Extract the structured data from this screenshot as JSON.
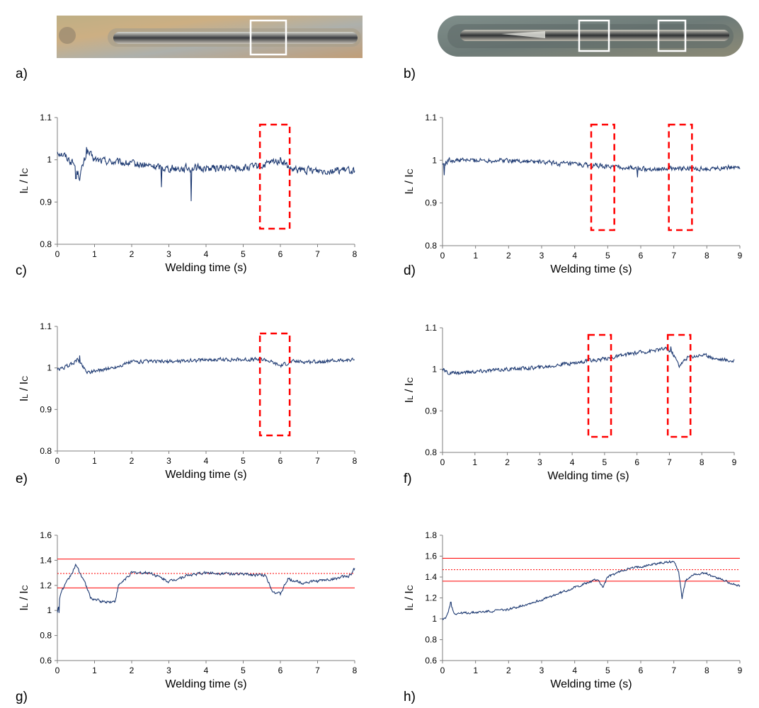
{
  "panel_labels": [
    "a)",
    "b)",
    "c)",
    "d)",
    "e)",
    "f)",
    "g)",
    "h)"
  ],
  "photos": [
    {
      "label": "a)",
      "description_name": "weld-seam-photo-a",
      "marked_regions": 1
    },
    {
      "label": "b)",
      "description_name": "weld-seam-photo-b",
      "marked_regions": 2
    }
  ],
  "colors": {
    "series": "#1f3b73",
    "highlight": "#ff0000",
    "axis": "#7f7f7f"
  },
  "chart_data": [
    {
      "id": "c",
      "label": "c)",
      "type": "line",
      "xlabel": "Welding time (s)",
      "ylabel": "IL / IC",
      "ylabel_main": "I",
      "ylabel_sub1": "L",
      "ylabel_mid": " / I",
      "ylabel_sub2": "C",
      "xlim": [
        0,
        8
      ],
      "ylim": [
        0.8,
        1.1
      ],
      "xticks": [
        "0",
        "1",
        "2",
        "3",
        "4",
        "5",
        "6",
        "7",
        "8"
      ],
      "yticks": [
        "0.8",
        "0.9",
        "1",
        "1.1"
      ],
      "series": [
        {
          "name": "IL/IC",
          "keypoints": [
            [
              0,
              1.02
            ],
            [
              0.2,
              1.01
            ],
            [
              0.45,
              0.99
            ],
            [
              0.6,
              0.96
            ],
            [
              0.8,
              1.02
            ],
            [
              1.0,
              1.0
            ],
            [
              2,
              0.99
            ],
            [
              3,
              0.98
            ],
            [
              4,
              0.98
            ],
            [
              5,
              0.98
            ],
            [
              5.5,
              0.985
            ],
            [
              6,
              1.0
            ],
            [
              6.3,
              0.975
            ],
            [
              7,
              0.975
            ],
            [
              8,
              0.975
            ]
          ],
          "noise": 0.008,
          "spikes": [
            [
              0.5,
              0.955
            ],
            [
              0.78,
              1.03
            ],
            [
              2.8,
              0.935
            ],
            [
              3.6,
              0.902
            ]
          ]
        }
      ],
      "highlight_boxes": [
        [
          5.45,
          6.25
        ]
      ]
    },
    {
      "id": "d",
      "label": "d)",
      "type": "line",
      "xlabel": "Welding time (s)",
      "ylabel": "IL / IC",
      "ylabel_main": "I",
      "ylabel_sub1": "L",
      "ylabel_mid": " / I",
      "ylabel_sub2": "C",
      "xlim": [
        0,
        9
      ],
      "ylim": [
        0.8,
        1.1
      ],
      "xticks": [
        "0",
        "1",
        "2",
        "3",
        "4",
        "5",
        "6",
        "7",
        "8",
        "9"
      ],
      "yticks": [
        "0.8",
        "0.9",
        "1",
        "1.1"
      ],
      "series": [
        {
          "name": "IL/IC",
          "keypoints": [
            [
              0,
              0.99
            ],
            [
              0.2,
              1.0
            ],
            [
              2,
              1.0
            ],
            [
              3,
              0.995
            ],
            [
              4,
              0.99
            ],
            [
              5,
              0.985
            ],
            [
              6,
              0.98
            ],
            [
              7,
              0.98
            ],
            [
              8,
              0.98
            ],
            [
              9,
              0.985
            ]
          ],
          "noise": 0.005,
          "spikes": [
            [
              0.05,
              0.965
            ],
            [
              5.9,
              0.96
            ]
          ]
        }
      ],
      "highlight_boxes": [
        [
          4.5,
          5.2
        ],
        [
          6.85,
          7.55
        ]
      ]
    },
    {
      "id": "e",
      "label": "e)",
      "type": "line",
      "xlabel": "Welding time (s)",
      "ylabel": "IL / IC",
      "ylabel_main": "I",
      "ylabel_sub1": "L",
      "ylabel_mid": " / I",
      "ylabel_sub2": "C",
      "xlim": [
        0,
        8
      ],
      "ylim": [
        0.8,
        1.1
      ],
      "xticks": [
        "0",
        "1",
        "2",
        "3",
        "4",
        "5",
        "6",
        "7",
        "8"
      ],
      "yticks": [
        "0.8",
        "0.9",
        "1",
        "1.1"
      ],
      "series": [
        {
          "name": "IL/IC",
          "keypoints": [
            [
              0,
              0.995
            ],
            [
              0.3,
              1.005
            ],
            [
              0.55,
              1.02
            ],
            [
              0.8,
              0.99
            ],
            [
              1.5,
              1.0
            ],
            [
              2,
              1.015
            ],
            [
              3,
              1.015
            ],
            [
              4,
              1.02
            ],
            [
              5,
              1.02
            ],
            [
              5.6,
              1.02
            ],
            [
              6,
              1.005
            ],
            [
              6.3,
              1.015
            ],
            [
              7,
              1.015
            ],
            [
              8,
              1.02
            ]
          ],
          "noise": 0.004,
          "spikes": [
            [
              0.6,
              1.03
            ]
          ]
        }
      ],
      "highlight_boxes": [
        [
          5.45,
          6.25
        ]
      ]
    },
    {
      "id": "f",
      "label": "f)",
      "type": "line",
      "xlabel": "Welding time (s)",
      "ylabel": "IL / IC",
      "ylabel_main": "I",
      "ylabel_sub1": "L",
      "ylabel_mid": " / I",
      "ylabel_sub2": "C",
      "xlim": [
        0,
        9
      ],
      "ylim": [
        0.8,
        1.1
      ],
      "xticks": [
        "0",
        "1",
        "2",
        "3",
        "4",
        "5",
        "6",
        "7",
        "8",
        "9"
      ],
      "yticks": [
        "0.8",
        "0.9",
        "1",
        "1.1"
      ],
      "series": [
        {
          "name": "IL/IC",
          "keypoints": [
            [
              0,
              1.0
            ],
            [
              0.2,
              0.99
            ],
            [
              2,
              1.0
            ],
            [
              3,
              1.005
            ],
            [
              4,
              1.015
            ],
            [
              5,
              1.025
            ],
            [
              6,
              1.04
            ],
            [
              6.9,
              1.05
            ],
            [
              7.1,
              1.04
            ],
            [
              7.3,
              1.01
            ],
            [
              7.6,
              1.03
            ],
            [
              8,
              1.035
            ],
            [
              8.5,
              1.025
            ],
            [
              9,
              1.02
            ]
          ],
          "noise": 0.004,
          "spikes": [
            [
              7.05,
              1.055
            ],
            [
              7.3,
              1.005
            ]
          ]
        }
      ],
      "highlight_boxes": [
        [
          4.5,
          5.2
        ],
        [
          6.95,
          7.65
        ]
      ]
    },
    {
      "id": "g",
      "label": "g)",
      "type": "line",
      "xlabel": "Welding time (s)",
      "ylabel": "IL / IC",
      "ylabel_main": "I",
      "ylabel_sub1": "L",
      "ylabel_mid": " / I",
      "ylabel_sub2": "C",
      "xlim": [
        0,
        8
      ],
      "ylim": [
        0.6,
        1.6
      ],
      "xticks": [
        "0",
        "1",
        "2",
        "3",
        "4",
        "5",
        "6",
        "7",
        "8"
      ],
      "yticks": [
        "0.6",
        "0.8",
        "1",
        "1.2",
        "1.4",
        "1.6"
      ],
      "series": [
        {
          "name": "IL/IC",
          "keypoints": [
            [
              0,
              0.98
            ],
            [
              0.1,
              1.15
            ],
            [
              0.3,
              1.25
            ],
            [
              0.5,
              1.36
            ],
            [
              0.7,
              1.25
            ],
            [
              0.9,
              1.1
            ],
            [
              1.2,
              1.07
            ],
            [
              1.55,
              1.07
            ],
            [
              1.65,
              1.2
            ],
            [
              2,
              1.3
            ],
            [
              2.5,
              1.3
            ],
            [
              3,
              1.23
            ],
            [
              3.5,
              1.28
            ],
            [
              4,
              1.3
            ],
            [
              5,
              1.29
            ],
            [
              5.6,
              1.28
            ],
            [
              5.8,
              1.15
            ],
            [
              6,
              1.13
            ],
            [
              6.2,
              1.25
            ],
            [
              6.6,
              1.22
            ],
            [
              7.4,
              1.25
            ],
            [
              7.9,
              1.28
            ],
            [
              8,
              1.34
            ]
          ],
          "noise": 0.01,
          "spikes": [
            [
              0.05,
              0.98
            ]
          ]
        }
      ],
      "hlines": [
        {
          "y": 1.41,
          "style": "solid"
        },
        {
          "y": 1.295,
          "style": "dotted"
        },
        {
          "y": 1.18,
          "style": "solid"
        }
      ]
    },
    {
      "id": "h",
      "label": "h)",
      "type": "line",
      "xlabel": "Welding time (s)",
      "ylabel": "IL / IC",
      "ylabel_main": "I",
      "ylabel_sub1": "L",
      "ylabel_mid": " / I",
      "ylabel_sub2": "C",
      "xlim": [
        0,
        9
      ],
      "ylim": [
        0.6,
        1.8
      ],
      "xticks": [
        "0",
        "1",
        "2",
        "3",
        "4",
        "5",
        "6",
        "7",
        "8",
        "9"
      ],
      "yticks": [
        "0.6",
        "0.8",
        "1",
        "1.2",
        "1.4",
        "1.6",
        "1.8"
      ],
      "series": [
        {
          "name": "IL/IC",
          "keypoints": [
            [
              0,
              1.0
            ],
            [
              0.1,
              1.0
            ],
            [
              0.25,
              1.15
            ],
            [
              0.35,
              1.05
            ],
            [
              1,
              1.06
            ],
            [
              2,
              1.09
            ],
            [
              3,
              1.18
            ],
            [
              4,
              1.3
            ],
            [
              4.7,
              1.38
            ],
            [
              4.85,
              1.3
            ],
            [
              5,
              1.4
            ],
            [
              5.5,
              1.47
            ],
            [
              6,
              1.5
            ],
            [
              6.5,
              1.53
            ],
            [
              7,
              1.55
            ],
            [
              7.15,
              1.45
            ],
            [
              7.25,
              1.2
            ],
            [
              7.35,
              1.36
            ],
            [
              7.6,
              1.43
            ],
            [
              8,
              1.43
            ],
            [
              8.5,
              1.37
            ],
            [
              9,
              1.31
            ]
          ],
          "noise": 0.01,
          "spikes": [
            [
              0.25,
              1.16
            ],
            [
              7.25,
              1.19
            ]
          ]
        }
      ],
      "hlines": [
        {
          "y": 1.58,
          "style": "solid"
        },
        {
          "y": 1.47,
          "style": "dotted"
        },
        {
          "y": 1.36,
          "style": "solid"
        }
      ]
    }
  ]
}
